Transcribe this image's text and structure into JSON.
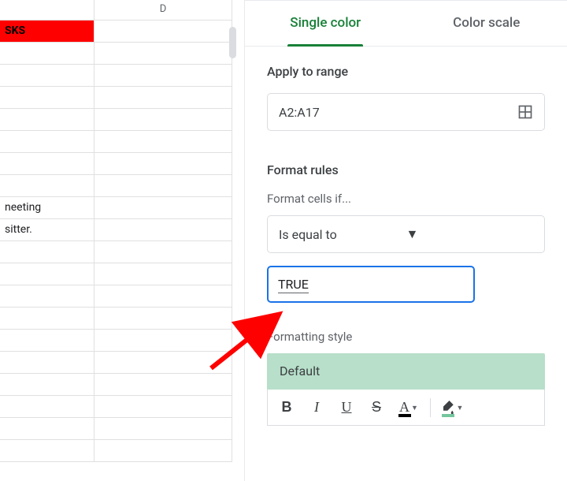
{
  "sheet": {
    "col_c_width": 120,
    "col_d_width": 175,
    "columns": {
      "d_label": "D"
    },
    "rows": [
      {
        "c": "SKS",
        "red": true
      },
      {
        "c": ""
      },
      {
        "c": ""
      },
      {
        "c": ""
      },
      {
        "c": ""
      },
      {
        "c": ""
      },
      {
        "c": ""
      },
      {
        "c": ""
      },
      {
        "c": "neeting"
      },
      {
        "c": "sitter."
      },
      {
        "c": ""
      },
      {
        "c": ""
      },
      {
        "c": ""
      },
      {
        "c": ""
      },
      {
        "c": ""
      },
      {
        "c": ""
      },
      {
        "c": ""
      },
      {
        "c": ""
      },
      {
        "c": ""
      },
      {
        "c": ""
      }
    ],
    "red_bg": "#ff0000"
  },
  "sidebar": {
    "tabs": {
      "single": "Single color",
      "scale": "Color scale",
      "active_color": "#188038",
      "inactive_color": "#5f6368"
    },
    "apply_to_range": {
      "label": "Apply to range",
      "value": "A2:A17"
    },
    "format_rules": {
      "label": "Format rules",
      "cells_if_label": "Format cells if...",
      "condition": "Is equal to",
      "value": "TRUE"
    },
    "formatting_style": {
      "label": "Formatting style",
      "preview_text": "Default",
      "preview_bg": "#b7dfc9",
      "fill_swatch": "#74c69d"
    },
    "toolbar": {
      "bold": "B",
      "italic": "I",
      "underline": "U",
      "strike": "S",
      "text_color": "A"
    }
  },
  "arrow_color": "#ff0000"
}
